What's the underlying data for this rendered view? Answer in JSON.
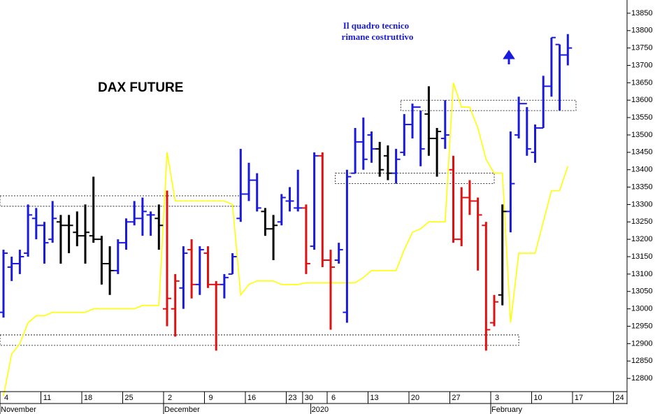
{
  "chart_data": {
    "type": "ohlc",
    "title": "DAX FUTURE",
    "annotation": [
      "Il quadro tecnico",
      "rimane costruttivo"
    ],
    "categories": [
      "4",
      null,
      null,
      null,
      null,
      "11",
      null,
      null,
      null,
      null,
      "18",
      null,
      null,
      null,
      null,
      "25",
      null,
      null,
      null,
      null,
      "2",
      null,
      null,
      null,
      null,
      "9",
      null,
      null,
      null,
      null,
      "16",
      null,
      null,
      null,
      null,
      "23",
      null,
      "30",
      null,
      null,
      "6",
      null,
      null,
      null,
      null,
      "13",
      null,
      null,
      null,
      null,
      "20",
      null,
      null,
      null,
      null,
      "27",
      null,
      null,
      null,
      null,
      "3",
      null,
      null,
      null,
      null,
      "10",
      null,
      null,
      null,
      null,
      "17",
      null,
      null,
      null,
      null,
      "24"
    ],
    "x_groups": [
      {
        "label": "November",
        "start": 0
      },
      {
        "label": "December",
        "start": 20
      },
      {
        "label": "2020",
        "start": 38
      },
      {
        "label": "February",
        "start": 60
      }
    ],
    "ohlc": {
      "open": [
        12990,
        13120,
        13130,
        13160,
        13260,
        13240,
        13200,
        13250,
        13240,
        13220,
        13210,
        13210,
        13200,
        13130,
        13110,
        13190,
        13250,
        13260,
        13270,
        13260,
        13000,
        13000,
        13060,
        13170,
        13070,
        13160,
        13070,
        13070,
        13100,
        13260,
        13330,
        13370,
        13280,
        13230,
        13250,
        13310,
        13290,
        13290,
        13180,
        13440,
        13140,
        13140,
        12990,
        13390,
        13480,
        13500,
        13460,
        13440,
        13390,
        13450,
        13530,
        13580,
        13560,
        13490,
        13490,
        13400,
        13200,
        13320,
        13310,
        13240,
        12960,
        13040,
        13280,
        13500,
        13590,
        13450,
        13520,
        13640,
        13760,
        13730,
        null,
        null,
        null,
        null,
        null,
        null
      ],
      "high": [
        13170,
        13150,
        13170,
        13300,
        13290,
        13250,
        13310,
        13270,
        13270,
        13280,
        13300,
        13380,
        13210,
        13180,
        13200,
        13260,
        13310,
        13320,
        13280,
        13300,
        13340,
        13100,
        13180,
        13200,
        13180,
        13180,
        13080,
        13100,
        13160,
        13460,
        13420,
        13390,
        13290,
        13270,
        13330,
        13350,
        13400,
        13300,
        13450,
        13450,
        13170,
        13190,
        13400,
        13520,
        13550,
        13510,
        13480,
        13470,
        13460,
        13560,
        13590,
        13570,
        13640,
        13520,
        13600,
        13440,
        13350,
        13370,
        13320,
        13250,
        13040,
        13300,
        13510,
        13610,
        13580,
        13530,
        13670,
        13780,
        13760,
        13790,
        null,
        null,
        null,
        null,
        null,
        null
      ],
      "low": [
        12975,
        13080,
        13100,
        13150,
        13200,
        13130,
        13190,
        13130,
        13160,
        13180,
        13130,
        13190,
        13070,
        13040,
        13100,
        13170,
        13240,
        13210,
        13210,
        13170,
        12950,
        12920,
        13000,
        13030,
        13040,
        13060,
        12880,
        13030,
        13100,
        13250,
        13310,
        13280,
        13210,
        13140,
        13240,
        13280,
        13280,
        13100,
        13170,
        13120,
        12940,
        13130,
        12960,
        13390,
        13400,
        13420,
        13380,
        13370,
        13360,
        13440,
        13490,
        13410,
        13440,
        13380,
        13460,
        13190,
        13180,
        13270,
        13110,
        12880,
        12950,
        13010,
        13220,
        13490,
        13440,
        13420,
        13520,
        13610,
        13570,
        13700,
        null,
        null,
        null,
        null,
        null,
        null
      ],
      "close": [
        13160,
        13130,
        13150,
        13270,
        13240,
        13190,
        13260,
        13240,
        13240,
        13210,
        13220,
        13200,
        13130,
        13110,
        13190,
        13250,
        13260,
        13280,
        13270,
        13240,
        13030,
        13080,
        13160,
        13070,
        13170,
        13070,
        13070,
        13090,
        13150,
        13330,
        13370,
        13290,
        13230,
        13240,
        13320,
        13310,
        13290,
        13130,
        13440,
        13140,
        13120,
        13170,
        13380,
        13480,
        13430,
        13460,
        13400,
        13390,
        13430,
        13530,
        13580,
        13460,
        13490,
        13510,
        13500,
        13200,
        13320,
        13310,
        13270,
        12940,
        13020,
        13280,
        13360,
        13590,
        13460,
        13520,
        13640,
        13780,
        13730,
        13750,
        null,
        null,
        null,
        null,
        null,
        null
      ],
      "colors": [
        "#1a1adc",
        "#1a1adc",
        "#1a1adc",
        "#1a1adc",
        "#1a1adc",
        "#1a1adc",
        "#1a1adc",
        "#000000",
        "#000000",
        "#000000",
        "#000000",
        "#000000",
        "#000000",
        "#000000",
        "#1a1adc",
        "#1a1adc",
        "#1a1adc",
        "#1a1adc",
        "#1a1adc",
        "#000000",
        "#e01010",
        "#e01010",
        "#1a1adc",
        "#e01010",
        "#1a1adc",
        "#e01010",
        "#e01010",
        "#1a1adc",
        "#1a1adc",
        "#1a1adc",
        "#1a1adc",
        "#1a1adc",
        "#000000",
        "#000000",
        "#1a1adc",
        "#1a1adc",
        "#1a1adc",
        "#e01010",
        "#1a1adc",
        "#e01010",
        "#e01010",
        "#1a1adc",
        "#1a1adc",
        "#1a1adc",
        "#1a1adc",
        "#1a1adc",
        "#000000",
        "#000000",
        "#1a1adc",
        "#1a1adc",
        "#1a1adc",
        "#1a1adc",
        "#000000",
        "#000000",
        "#1a1adc",
        "#e01010",
        "#e01010",
        "#e01010",
        "#e01010",
        "#e01010",
        "#e01010",
        "#000000",
        "#1a1adc",
        "#1a1adc",
        "#1a1adc",
        "#1a1adc",
        "#1a1adc",
        "#1a1adc",
        "#1a1adc",
        "#1a1adc",
        null,
        null,
        null,
        null,
        null,
        null
      ]
    },
    "line": {
      "color": "#ffff00",
      "values": [
        12750,
        12870,
        12900,
        12960,
        12980,
        12980,
        12990,
        12990,
        12990,
        12990,
        12990,
        13000,
        13000,
        13000,
        13000,
        13000,
        13000,
        13010,
        13010,
        13010,
        13450,
        13310,
        13310,
        13310,
        13310,
        13310,
        13310,
        13310,
        13300,
        13040,
        13070,
        13080,
        13080,
        13080,
        13070,
        13070,
        13070,
        13075,
        13075,
        13075,
        13075,
        13075,
        13075,
        13075,
        13090,
        13110,
        13110,
        13110,
        13110,
        13170,
        13220,
        13230,
        13250,
        13250,
        13250,
        13650,
        13580,
        13580,
        13520,
        13430,
        13390,
        13390,
        12960,
        13160,
        13160,
        13160,
        13250,
        13340,
        13340,
        13410,
        null,
        null,
        null,
        null,
        null,
        null
      ]
    },
    "zones": [
      {
        "from": 0,
        "to": 29,
        "low": 13295,
        "high": 13325
      },
      {
        "from": 0,
        "to": 63,
        "low": 12895,
        "high": 12925
      },
      {
        "from": 41,
        "to": 60,
        "low": 13360,
        "high": 13390
      },
      {
        "from": 49,
        "to": 70,
        "low": 13570,
        "high": 13600
      }
    ],
    "ylim": [
      12762,
      13888
    ],
    "yticks": [
      12800,
      12850,
      12900,
      12950,
      13000,
      13050,
      13100,
      13150,
      13200,
      13250,
      13300,
      13350,
      13400,
      13450,
      13500,
      13550,
      13600,
      13650,
      13700,
      13750,
      13800,
      13850
    ]
  }
}
